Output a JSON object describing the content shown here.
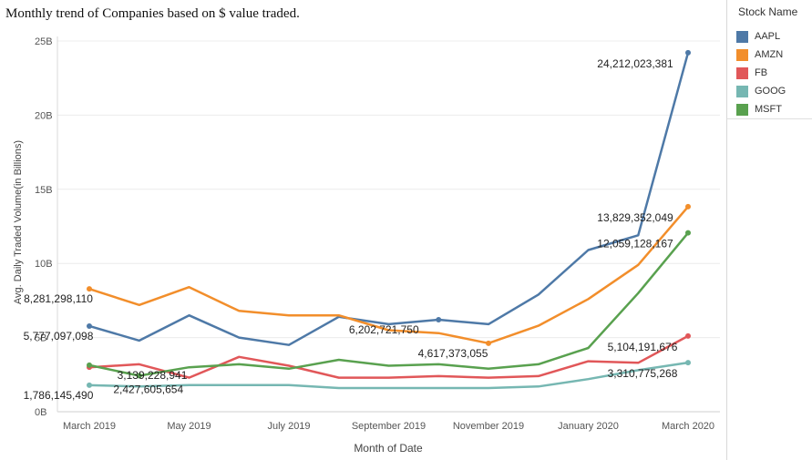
{
  "page": {
    "title": "Monthly trend of Companies based on $ value traded."
  },
  "legend": {
    "title": "Stock Name",
    "items": [
      {
        "label": "AAPL",
        "color": "#4e79a7"
      },
      {
        "label": "AMZN",
        "color": "#f28e2b"
      },
      {
        "label": "FB",
        "color": "#e15759"
      },
      {
        "label": "GOOG",
        "color": "#76b7b2"
      },
      {
        "label": "MSFT",
        "color": "#59a14f"
      }
    ]
  },
  "chart_data": {
    "type": "line",
    "title": "Monthly trend of Companies based on $ value traded.",
    "xlabel": "Month of Date",
    "ylabel": "Avg. Daily Traded Volume(in Billions)",
    "x": [
      "2019-03",
      "2019-04",
      "2019-05",
      "2019-06",
      "2019-07",
      "2019-08",
      "2019-09",
      "2019-10",
      "2019-11",
      "2019-12",
      "2020-01",
      "2020-02",
      "2020-03"
    ],
    "x_tick_labels": [
      {
        "x": "2019-03",
        "label": "March 2019"
      },
      {
        "x": "2019-05",
        "label": "May 2019"
      },
      {
        "x": "2019-07",
        "label": "July 2019"
      },
      {
        "x": "2019-09",
        "label": "September 2019"
      },
      {
        "x": "2019-11",
        "label": "November 2019"
      },
      {
        "x": "2020-01",
        "label": "January 2020"
      },
      {
        "x": "2020-03",
        "label": "March 2020"
      }
    ],
    "ylim": [
      0,
      25000000000
    ],
    "y_ticks": [
      {
        "value": 0,
        "label": "0B"
      },
      {
        "value": 5000000000,
        "label": "5B"
      },
      {
        "value": 10000000000,
        "label": "10B"
      },
      {
        "value": 15000000000,
        "label": "15B"
      },
      {
        "value": 20000000000,
        "label": "20B"
      },
      {
        "value": 25000000000,
        "label": "25B"
      }
    ],
    "grid": "horizontal",
    "legend_position": "right",
    "series": [
      {
        "name": "AAPL",
        "color": "#4e79a7",
        "values": [
          5777097098,
          4800000000,
          6500000000,
          5000000000,
          4500000000,
          6400000000,
          5900000000,
          6202721750,
          5900000000,
          7900000000,
          10900000000,
          11900000000,
          24212023381
        ]
      },
      {
        "name": "AMZN",
        "color": "#f28e2b",
        "values": [
          8281298110,
          7200000000,
          8400000000,
          6800000000,
          6500000000,
          6500000000,
          5500000000,
          5300000000,
          4617373055,
          5800000000,
          7600000000,
          9900000000,
          13829352049
        ]
      },
      {
        "name": "FB",
        "color": "#e15759",
        "values": [
          3000000000,
          3200000000,
          2300000000,
          3700000000,
          3100000000,
          2300000000,
          2300000000,
          2400000000,
          2300000000,
          2400000000,
          3400000000,
          3300000000,
          5104191676
        ]
      },
      {
        "name": "GOOG",
        "color": "#76b7b2",
        "values": [
          1786145490,
          1700000000,
          1800000000,
          1800000000,
          1800000000,
          1600000000,
          1600000000,
          1600000000,
          1600000000,
          1700000000,
          2200000000,
          2800000000,
          3310775268
        ]
      },
      {
        "name": "MSFT",
        "color": "#59a14f",
        "values": [
          3139228941,
          2427605654,
          3000000000,
          3200000000,
          2900000000,
          3500000000,
          3100000000,
          3200000000,
          2900000000,
          3200000000,
          4300000000,
          8000000000,
          12059128167
        ]
      }
    ],
    "data_labels": [
      {
        "series": "AAPL",
        "x": "2019-03",
        "label": "5,777,097,098"
      },
      {
        "series": "AAPL",
        "x": "2019-10",
        "label": "6,202,721,750"
      },
      {
        "series": "AAPL",
        "x": "2020-03",
        "label": "24,212,023,381"
      },
      {
        "series": "AMZN",
        "x": "2019-03",
        "label": "8,281,298,110"
      },
      {
        "series": "AMZN",
        "x": "2019-11",
        "label": "4,617,373,055"
      },
      {
        "series": "AMZN",
        "x": "2020-03",
        "label": "13,829,352,049"
      },
      {
        "series": "FB",
        "x": "2020-03",
        "label": "5,104,191,676"
      },
      {
        "series": "GOOG",
        "x": "2019-03",
        "label": "1,786,145,490"
      },
      {
        "series": "GOOG",
        "x": "2020-03",
        "label": "3,310,775,268"
      },
      {
        "series": "MSFT",
        "x": "2019-03",
        "label": "3,139,228,941"
      },
      {
        "series": "MSFT",
        "x": "2019-04",
        "label": "2,427,605,654"
      },
      {
        "series": "MSFT",
        "x": "2020-03",
        "label": "12,059,128,167"
      }
    ]
  }
}
